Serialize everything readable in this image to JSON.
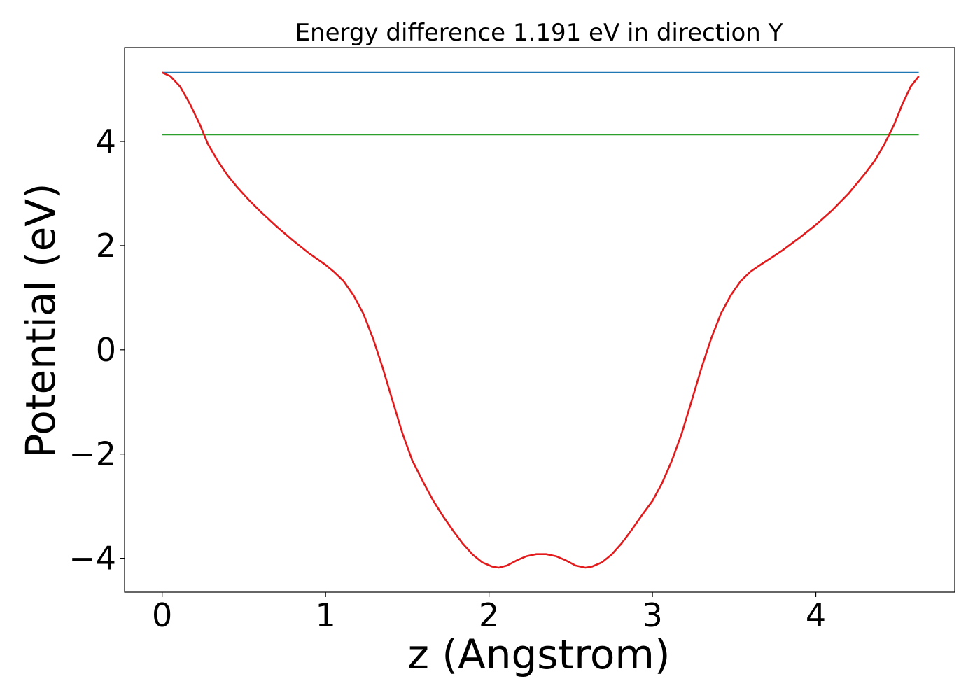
{
  "chart_data": {
    "type": "line",
    "title": "Energy difference 1.191 eV in direction Y",
    "xlabel": "z (Angstrom)",
    "ylabel": "Potential (eV)",
    "xlim": [
      -0.23,
      4.85
    ],
    "ylim": [
      -4.65,
      5.8
    ],
    "xticks": [
      0,
      1,
      2,
      3,
      4
    ],
    "xtick_labels": [
      "0",
      "1",
      "2",
      "3",
      "4"
    ],
    "yticks": [
      -4,
      -2,
      0,
      2,
      4
    ],
    "ytick_labels": [
      "−4",
      "−2",
      "0",
      "2",
      "4"
    ],
    "grid": false,
    "series": [
      {
        "color": "#1f77b4",
        "x": [
          0,
          4.63
        ],
        "y": [
          5.32,
          5.32
        ]
      },
      {
        "color": "#2ca02c",
        "x": [
          0,
          4.63
        ],
        "y": [
          4.13,
          4.13
        ]
      },
      {
        "color": "#e31a1c",
        "x": [
          0,
          0.05,
          0.11,
          0.17,
          0.23,
          0.28,
          0.34,
          0.4,
          0.46,
          0.53,
          0.6,
          0.7,
          0.8,
          0.9,
          1.0,
          1.05,
          1.11,
          1.17,
          1.23,
          1.29,
          1.35,
          1.41,
          1.47,
          1.53,
          1.6,
          1.66,
          1.72,
          1.78,
          1.84,
          1.9,
          1.96,
          2.02,
          2.06,
          2.11,
          2.17,
          2.23,
          2.29,
          2.35,
          2.41,
          2.47,
          2.53,
          2.59,
          2.63,
          2.69,
          2.75,
          2.81,
          2.87,
          2.93,
          3.0,
          3.06,
          3.12,
          3.18,
          3.24,
          3.3,
          3.36,
          3.42,
          3.48,
          3.54,
          3.6,
          3.66,
          3.72,
          3.8,
          3.9,
          4.0,
          4.1,
          4.2,
          4.3,
          4.36,
          4.42,
          4.48,
          4.53,
          4.58,
          4.63
        ],
        "y": [
          5.32,
          5.25,
          5.05,
          4.72,
          4.33,
          3.95,
          3.63,
          3.35,
          3.12,
          2.88,
          2.66,
          2.37,
          2.1,
          1.85,
          1.63,
          1.5,
          1.32,
          1.05,
          0.7,
          0.22,
          -0.35,
          -0.98,
          -1.6,
          -2.12,
          -2.55,
          -2.9,
          -3.2,
          -3.47,
          -3.72,
          -3.93,
          -4.08,
          -4.16,
          -4.18,
          -4.14,
          -4.04,
          -3.96,
          -3.92,
          -3.92,
          -3.96,
          -4.04,
          -4.14,
          -4.18,
          -4.16,
          -4.08,
          -3.93,
          -3.72,
          -3.47,
          -3.2,
          -2.9,
          -2.55,
          -2.12,
          -1.6,
          -0.98,
          -0.35,
          0.22,
          0.7,
          1.05,
          1.32,
          1.5,
          1.63,
          1.75,
          1.92,
          2.15,
          2.4,
          2.68,
          3.0,
          3.38,
          3.63,
          3.95,
          4.33,
          4.72,
          5.05,
          5.25
        ]
      }
    ]
  }
}
